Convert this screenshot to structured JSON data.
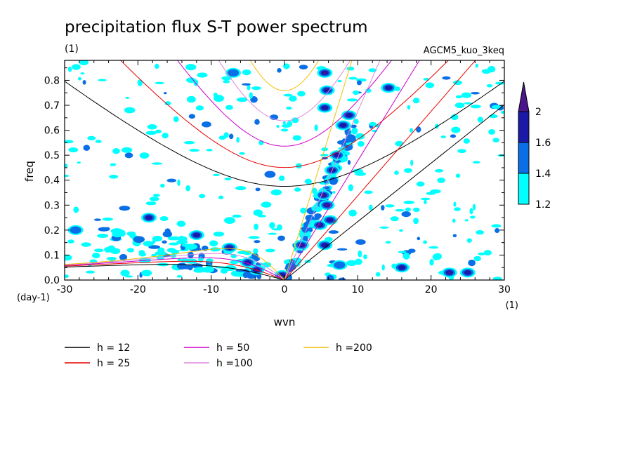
{
  "chart_data": {
    "type": "heatmap",
    "title": "precipitation flux S-T power spectrum",
    "subtitle_left": "(1)",
    "subtitle_right": "AGCM5_kuo_3keq",
    "xlabel": "wvn",
    "ylabel": "freq",
    "x_unit_label": "(1)",
    "y_unit_label": "(day-1)",
    "xlim": [
      -30,
      30
    ],
    "ylim": [
      0,
      0.88
    ],
    "x_ticks": [
      -30,
      -20,
      -10,
      0,
      10,
      20,
      30
    ],
    "y_ticks": [
      0.0,
      0.1,
      0.2,
      0.3,
      0.4,
      0.5,
      0.6,
      0.7,
      0.8
    ],
    "x_tick_labels": [
      "-30",
      "-20",
      "-10",
      "0",
      "10",
      "20",
      "30"
    ],
    "y_tick_labels": [
      "0.0",
      "0.1",
      "0.2",
      "0.3",
      "0.4",
      "0.5",
      "0.6",
      "0.7",
      "0.8"
    ],
    "colorbar": {
      "levels": [
        1.2,
        1.4,
        1.6,
        2
      ],
      "labels": [
        "1.2",
        "1.4",
        "1.6",
        "2"
      ],
      "colors": [
        "#00ffff",
        "#0a6ee6",
        "#1a1aa6",
        "#4b168c"
      ]
    },
    "contour_blobs": [
      {
        "x": 5.5,
        "y": 0.83,
        "level": 3
      },
      {
        "x": 5.8,
        "y": 0.76,
        "level": 2
      },
      {
        "x": 5.3,
        "y": 0.34,
        "level": 3
      },
      {
        "x": 5.8,
        "y": 0.3,
        "level": 3
      },
      {
        "x": 4.8,
        "y": 0.22,
        "level": 3
      },
      {
        "x": 6.2,
        "y": 0.24,
        "level": 2
      },
      {
        "x": 2.3,
        "y": 0.14,
        "level": 3
      },
      {
        "x": 5.5,
        "y": 0.14,
        "level": 2
      },
      {
        "x": 7.2,
        "y": 0.5,
        "level": 2
      },
      {
        "x": 8.0,
        "y": 0.62,
        "level": 2
      },
      {
        "x": 8.8,
        "y": 0.66,
        "level": 2
      },
      {
        "x": 6.5,
        "y": 0.44,
        "level": 2
      },
      {
        "x": 14.2,
        "y": 0.77,
        "level": 2
      },
      {
        "x": 5.5,
        "y": 0.69,
        "level": 2
      },
      {
        "x": -12.0,
        "y": 0.18,
        "level": 2
      },
      {
        "x": -18.5,
        "y": 0.25,
        "level": 2
      },
      {
        "x": -7.5,
        "y": 0.13,
        "level": 2
      },
      {
        "x": -5.0,
        "y": 0.07,
        "level": 2
      },
      {
        "x": -3.8,
        "y": 0.04,
        "level": 3
      },
      {
        "x": -0.3,
        "y": 0.02,
        "level": 2
      },
      {
        "x": 22.5,
        "y": 0.03,
        "level": 3
      },
      {
        "x": 25.0,
        "y": 0.03,
        "level": 2
      },
      {
        "x": 16.0,
        "y": 0.05,
        "level": 2
      },
      {
        "x": -28.5,
        "y": 0.2,
        "level": 1
      },
      {
        "x": -7.0,
        "y": 0.83,
        "level": 1
      },
      {
        "x": 7.5,
        "y": 0.06,
        "level": 1
      }
    ],
    "dispersion_curves": [
      {
        "name": "h = 12",
        "color": "#000000"
      },
      {
        "name": "h = 25",
        "color": "#e60000"
      },
      {
        "name": "h = 50",
        "color": "#cc00cc"
      },
      {
        "name": "h =100",
        "color": "#dd88dd"
      },
      {
        "name": "h =200",
        "color": "#f0c000"
      }
    ]
  }
}
